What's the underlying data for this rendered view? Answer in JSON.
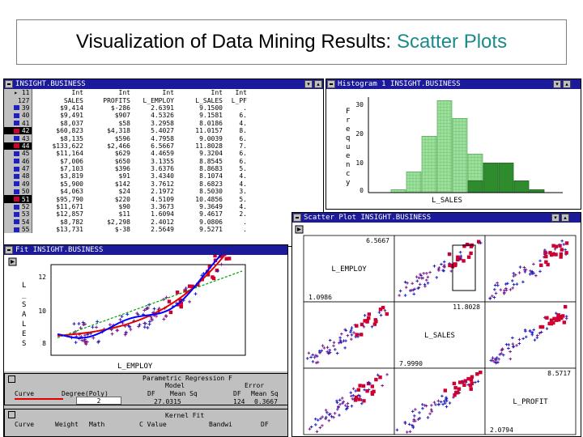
{
  "slide": {
    "title_main": "Visualization of Data Mining Results:",
    "title_accent": "Scatter Plots"
  },
  "colors": {
    "titlebar": "#1a1a9a",
    "histogram_light": "#9fdf9f",
    "histogram_dark": "#2e8b2e",
    "point_red": "#cc0033",
    "point_blue": "#2020c0",
    "point_purple": "#7a1a8a",
    "fit_red": "#e00000",
    "fit_blue": "#0000ff",
    "fit_green": "#00a000"
  },
  "table_window": {
    "title": "INSIGHT.BUSINESS",
    "corner_top": "11",
    "corner_bottom": "127",
    "type_row": [
      "Int",
      "Int",
      "Int",
      "Int",
      "Int"
    ],
    "columns": [
      "SALES",
      "PROFITS",
      "L_EMPLOY",
      "L_SALES",
      "L_PF"
    ],
    "rows": [
      {
        "id": "39",
        "mark": "blue",
        "cells": [
          "$9,414",
          "$-286",
          "2.6391",
          "9.1500",
          "."
        ]
      },
      {
        "id": "40",
        "mark": "blue",
        "cells": [
          "$9,491",
          "$907",
          "4.5326",
          "9.1581",
          "6."
        ]
      },
      {
        "id": "41",
        "mark": "blue",
        "cells": [
          "$8,037",
          "$58",
          "3.2958",
          "8.0186",
          "4."
        ]
      },
      {
        "id": "42",
        "mark": "red",
        "cells": [
          "$60,823",
          "$4,318",
          "5.4027",
          "11.0157",
          "8."
        ]
      },
      {
        "id": "43",
        "mark": "blue",
        "cells": [
          "$8,135",
          "$596",
          "4.7958",
          "9.0039",
          "6."
        ]
      },
      {
        "id": "44",
        "mark": "red",
        "cells": [
          "$133,622",
          "$2,466",
          "6.5667",
          "11.8028",
          "7."
        ]
      },
      {
        "id": "45",
        "mark": "blue",
        "cells": [
          "$11,164",
          "$629",
          "4.4659",
          "9.3204",
          "6."
        ]
      },
      {
        "id": "46",
        "mark": "blue",
        "cells": [
          "$7,006",
          "$650",
          "3.1355",
          "8.8545",
          "6."
        ]
      },
      {
        "id": "47",
        "mark": "blue",
        "cells": [
          "$7,103",
          "$396",
          "3.6376",
          "8.8683",
          "5."
        ]
      },
      {
        "id": "48",
        "mark": "blue",
        "cells": [
          "$3,819",
          "$91",
          "3.4340",
          "8.1074",
          "4."
        ]
      },
      {
        "id": "49",
        "mark": "blue",
        "cells": [
          "$5,900",
          "$142",
          "3.7612",
          "8.6823",
          "4."
        ]
      },
      {
        "id": "50",
        "mark": "blue",
        "cells": [
          "$4,063",
          "$24",
          "2.1972",
          "8.5030",
          "3."
        ]
      },
      {
        "id": "51",
        "mark": "red",
        "cells": [
          "$95,790",
          "$220",
          "4.5109",
          "10.4856",
          "5."
        ]
      },
      {
        "id": "52",
        "mark": "blue",
        "cells": [
          "$11,671",
          "$90",
          "3.3673",
          "9.3649",
          "4."
        ]
      },
      {
        "id": "53",
        "mark": "blue",
        "cells": [
          "$12,857",
          "$11",
          "1.6094",
          "9.4617",
          "2."
        ]
      },
      {
        "id": "54",
        "mark": "blue",
        "cells": [
          "$8,782",
          "$2,298",
          "2.4012",
          "9.0806",
          "."
        ]
      },
      {
        "id": "55",
        "mark": "blue",
        "cells": [
          "$13,731",
          "$-38",
          "2.5649",
          "9.5271",
          "."
        ]
      }
    ]
  },
  "histogram_window": {
    "title": "Histogram 1 INSIGHT.BUSINESS",
    "ylabel": "Frequency",
    "yticks": [
      "30",
      "20",
      "10",
      "0"
    ],
    "xlabel": "L_SALES"
  },
  "chart_data": {
    "type": "bar",
    "title": "Histogram 1 INSIGHT.BUSINESS",
    "xlabel": "L_SALES",
    "ylabel": "Frequency",
    "ylim": [
      0,
      33
    ],
    "bins": [
      1,
      2,
      3,
      4,
      5,
      6,
      7,
      8,
      9,
      10
    ],
    "values": [
      1,
      7,
      19,
      31,
      25,
      13,
      10,
      10,
      4,
      1
    ],
    "highlighted": [
      0,
      0,
      0,
      0,
      0,
      4,
      10,
      10,
      4,
      1
    ]
  },
  "fit_window": {
    "title": "Fit INSIGHT.BUSINESS",
    "ylabel": "L_SALES",
    "xlabel": "L_EMPLOY",
    "yticks": [
      "12",
      "10",
      "8"
    ],
    "regression": {
      "title": "Parametric Regression F",
      "col_headers": [
        "Curve",
        "Degree(Poly)",
        "Model",
        "Error"
      ],
      "sub_headers": [
        "DF",
        "Mean Sq",
        "DF",
        "Mean Sq"
      ],
      "row": [
        "2",
        "27.0315",
        "124",
        "0.3667"
      ]
    },
    "kernel": {
      "title": "Kernel Fit",
      "headers": [
        "Curve",
        "Weight",
        "Math",
        "C Value",
        "Bandwi",
        "DF"
      ]
    }
  },
  "scatter_window": {
    "title": "Scatter Plot INSIGHT.BUSINESS",
    "diag": [
      {
        "name": "L_EMPLOY",
        "max": "6.5667",
        "min": "1.0986"
      },
      {
        "name": "L_SALES",
        "max": "11.8028",
        "min": "7.9990"
      },
      {
        "name": "L_PROFIT",
        "max": "8.5717",
        "min": "2.0794"
      }
    ]
  }
}
